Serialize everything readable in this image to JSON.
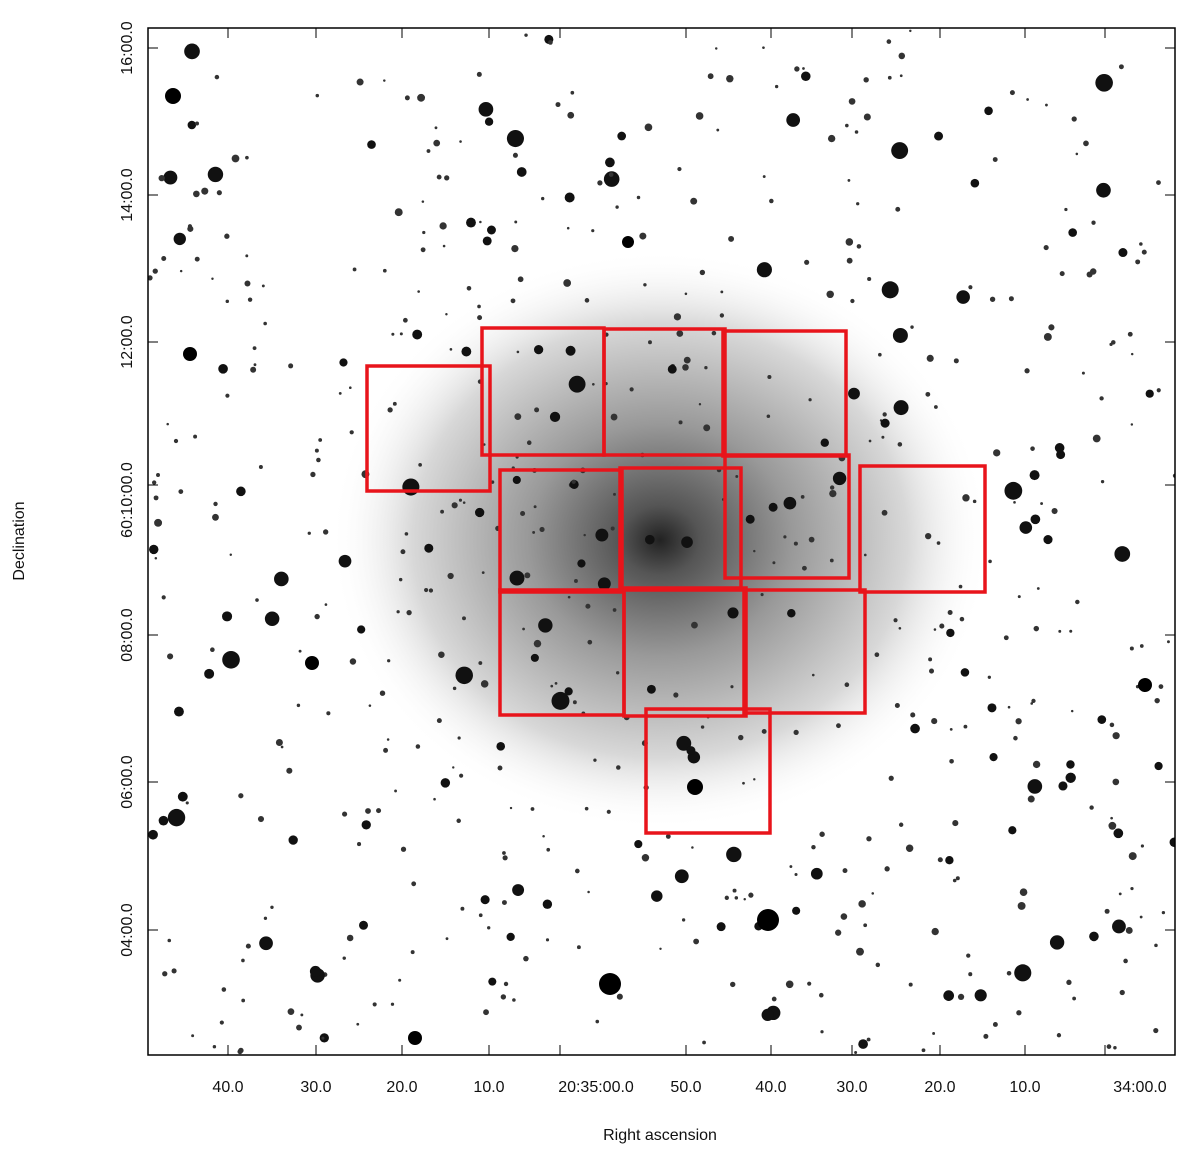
{
  "x_axis": {
    "label": "Right ascension",
    "ticks": [
      "40.0",
      "30.0",
      "20.0",
      "10.0",
      "20:35:00.0",
      "50.0",
      "40.0",
      "30.0",
      "20.0",
      "10.0",
      "34:00.0"
    ]
  },
  "y_axis": {
    "label": "Declination",
    "ticks": [
      "16:00.0",
      "14:00.0",
      "12:00.0",
      "60:10:00.0",
      "08:00.0",
      "06:00.0",
      "04:00.0"
    ]
  }
}
